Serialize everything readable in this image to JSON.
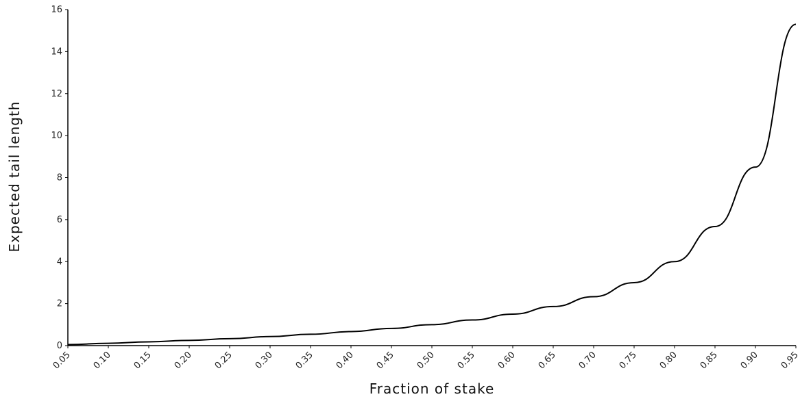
{
  "chart_data": {
    "type": "line",
    "title": "",
    "xlabel": "Fraction of stake",
    "ylabel": "Expected tail length",
    "xlim": [
      0.05,
      0.95
    ],
    "ylim": [
      0,
      16
    ],
    "x_ticks": [
      "0.05",
      "0.10",
      "0.15",
      "0.20",
      "0.25",
      "0.30",
      "0.35",
      "0.40",
      "0.45",
      "0.50",
      "0.55",
      "0.60",
      "0.65",
      "0.70",
      "0.75",
      "0.80",
      "0.85",
      "0.90",
      "0.95"
    ],
    "y_ticks": [
      "0",
      "2",
      "4",
      "6",
      "8",
      "10",
      "12",
      "14",
      "16"
    ],
    "grid": false,
    "legend": "none",
    "series": [
      {
        "color": "#000000",
        "x": [
          0.05,
          0.1,
          0.15,
          0.2,
          0.25,
          0.3,
          0.35,
          0.4,
          0.45,
          0.5,
          0.55,
          0.6,
          0.65,
          0.7,
          0.75,
          0.8,
          0.85,
          0.9,
          0.95
        ],
        "y": [
          0.05,
          0.11,
          0.18,
          0.25,
          0.33,
          0.43,
          0.54,
          0.67,
          0.82,
          1.0,
          1.22,
          1.5,
          1.86,
          2.33,
          3.0,
          4.0,
          5.67,
          8.5,
          15.3
        ]
      }
    ]
  }
}
